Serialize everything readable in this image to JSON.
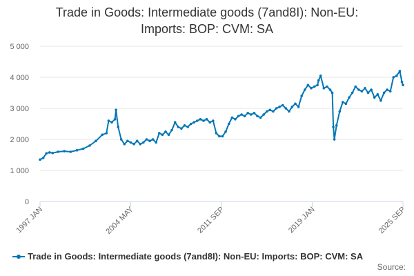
{
  "chart_data": {
    "type": "line",
    "title_lines": [
      "Trade in Goods: Intermediate goods (7and8I): Non-EU:",
      "Imports: BOP: CVM: SA"
    ],
    "x_tick_labels": [
      "1997 JAN",
      "2004 MAY",
      "2011 SEP",
      "2019 JAN",
      "2025 SEP"
    ],
    "y_tick_labels": [
      "0",
      "1 000",
      "2 000",
      "3 000",
      "4 000",
      "5 000"
    ],
    "ylim": [
      0,
      5000
    ],
    "x_range_months": [
      "1997-01",
      "2025-09"
    ],
    "grid": true,
    "legend_position": "bottom-left",
    "series": [
      {
        "name": "Trade in Goods: Intermediate goods (7and8I): Non-EU: Imports: BOP: CVM: SA",
        "color": "#0076b6",
        "points": [
          [
            "1997-01",
            1350
          ],
          [
            "1997-04",
            1400
          ],
          [
            "1997-07",
            1550
          ],
          [
            "1997-10",
            1580
          ],
          [
            "1998-01",
            1560
          ],
          [
            "1998-06",
            1600
          ],
          [
            "1998-12",
            1620
          ],
          [
            "1999-06",
            1600
          ],
          [
            "1999-12",
            1650
          ],
          [
            "2000-06",
            1700
          ],
          [
            "2000-12",
            1800
          ],
          [
            "2001-06",
            1950
          ],
          [
            "2001-12",
            2150
          ],
          [
            "2002-04",
            2200
          ],
          [
            "2002-06",
            2600
          ],
          [
            "2002-09",
            2550
          ],
          [
            "2002-12",
            2650
          ],
          [
            "2003-01",
            2950
          ],
          [
            "2003-03",
            2400
          ],
          [
            "2003-06",
            2000
          ],
          [
            "2003-09",
            1850
          ],
          [
            "2003-12",
            1950
          ],
          [
            "2004-03",
            1900
          ],
          [
            "2004-06",
            1850
          ],
          [
            "2004-09",
            1950
          ],
          [
            "2004-12",
            1850
          ],
          [
            "2005-03",
            1900
          ],
          [
            "2005-06",
            2000
          ],
          [
            "2005-09",
            1950
          ],
          [
            "2005-12",
            2000
          ],
          [
            "2006-03",
            1900
          ],
          [
            "2006-06",
            2200
          ],
          [
            "2006-09",
            2150
          ],
          [
            "2006-12",
            2250
          ],
          [
            "2007-03",
            2150
          ],
          [
            "2007-06",
            2300
          ],
          [
            "2007-09",
            2550
          ],
          [
            "2007-12",
            2400
          ],
          [
            "2008-03",
            2350
          ],
          [
            "2008-06",
            2450
          ],
          [
            "2008-09",
            2400
          ],
          [
            "2008-12",
            2500
          ],
          [
            "2009-03",
            2550
          ],
          [
            "2009-06",
            2600
          ],
          [
            "2009-09",
            2650
          ],
          [
            "2009-12",
            2600
          ],
          [
            "2010-03",
            2650
          ],
          [
            "2010-06",
            2550
          ],
          [
            "2010-09",
            2600
          ],
          [
            "2010-12",
            2200
          ],
          [
            "2011-03",
            2100
          ],
          [
            "2011-06",
            2100
          ],
          [
            "2011-09",
            2250
          ],
          [
            "2011-12",
            2500
          ],
          [
            "2012-03",
            2700
          ],
          [
            "2012-06",
            2650
          ],
          [
            "2012-09",
            2750
          ],
          [
            "2012-12",
            2800
          ],
          [
            "2013-03",
            2750
          ],
          [
            "2013-06",
            2850
          ],
          [
            "2013-09",
            2800
          ],
          [
            "2013-12",
            2850
          ],
          [
            "2014-03",
            2750
          ],
          [
            "2014-06",
            2700
          ],
          [
            "2014-09",
            2800
          ],
          [
            "2014-12",
            2900
          ],
          [
            "2015-03",
            2950
          ],
          [
            "2015-06",
            2900
          ],
          [
            "2015-09",
            3000
          ],
          [
            "2015-12",
            3050
          ],
          [
            "2016-03",
            3100
          ],
          [
            "2016-06",
            3000
          ],
          [
            "2016-09",
            2900
          ],
          [
            "2016-12",
            3050
          ],
          [
            "2017-03",
            3150
          ],
          [
            "2017-06",
            3050
          ],
          [
            "2017-09",
            3400
          ],
          [
            "2017-12",
            3600
          ],
          [
            "2018-03",
            3750
          ],
          [
            "2018-06",
            3650
          ],
          [
            "2018-09",
            3700
          ],
          [
            "2018-12",
            3750
          ],
          [
            "2019-01",
            3900
          ],
          [
            "2019-03",
            4050
          ],
          [
            "2019-06",
            3650
          ],
          [
            "2019-09",
            3700
          ],
          [
            "2019-12",
            3600
          ],
          [
            "2020-02",
            3500
          ],
          [
            "2020-03",
            2400
          ],
          [
            "2020-04",
            2000
          ],
          [
            "2020-06",
            2450
          ],
          [
            "2020-09",
            2900
          ],
          [
            "2020-12",
            3200
          ],
          [
            "2021-03",
            3150
          ],
          [
            "2021-06",
            3350
          ],
          [
            "2021-09",
            3500
          ],
          [
            "2021-12",
            3700
          ],
          [
            "2022-03",
            3600
          ],
          [
            "2022-06",
            3550
          ],
          [
            "2022-09",
            3650
          ],
          [
            "2022-12",
            3500
          ],
          [
            "2023-03",
            3600
          ],
          [
            "2023-06",
            3350
          ],
          [
            "2023-09",
            3450
          ],
          [
            "2023-12",
            3250
          ],
          [
            "2024-03",
            3500
          ],
          [
            "2024-06",
            3600
          ],
          [
            "2024-09",
            3550
          ],
          [
            "2024-12",
            4000
          ],
          [
            "2025-03",
            4050
          ],
          [
            "2025-06",
            4200
          ],
          [
            "2025-08",
            3850
          ],
          [
            "2025-09",
            3750
          ]
        ]
      }
    ]
  },
  "legend": {
    "label": "Trade in Goods: Intermediate goods (7and8I): Non-EU: Imports: BOP: CVM: SA"
  },
  "source": {
    "label": "Source:"
  }
}
